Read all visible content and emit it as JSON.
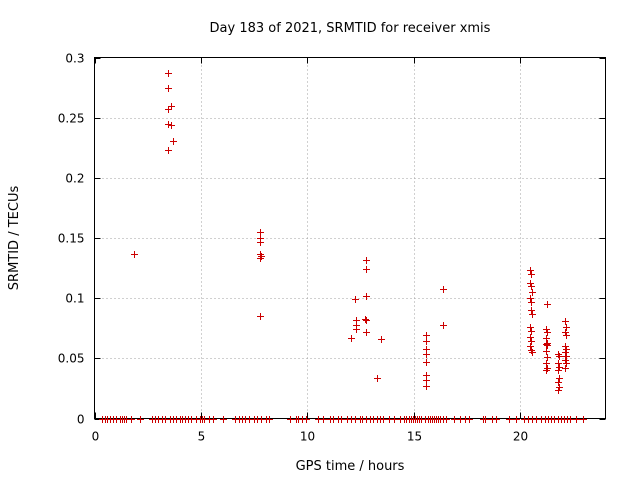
{
  "chart_data": {
    "type": "scatter",
    "title": "Day 183 of 2021, SRMTID for receiver xmis",
    "xlabel": "GPS time / hours",
    "ylabel": "SRMTID / TECUs",
    "xlim": [
      0,
      24
    ],
    "ylim": [
      0,
      0.3
    ],
    "xticks": [
      0,
      5,
      10,
      15,
      20
    ],
    "xtick_labels": [
      "0",
      "5",
      "10",
      "15",
      "20"
    ],
    "yticks": [
      0,
      0.05,
      0.1,
      0.15,
      0.2,
      0.25,
      0.3
    ],
    "ytick_labels": [
      "0",
      "0.05",
      "0.1",
      "0.15",
      "0.2",
      "0.25",
      "0.3"
    ],
    "grid": true,
    "marker": "+",
    "color": "#cc0000",
    "series": [
      {
        "name": "SRMTID",
        "points": [
          [
            1.85,
            0.137
          ],
          [
            3.45,
            0.287
          ],
          [
            3.45,
            0.275
          ],
          [
            3.45,
            0.257
          ],
          [
            3.45,
            0.245
          ],
          [
            3.45,
            0.223
          ],
          [
            3.6,
            0.26
          ],
          [
            3.6,
            0.244
          ],
          [
            3.7,
            0.231
          ],
          [
            7.75,
            0.155
          ],
          [
            7.75,
            0.15
          ],
          [
            7.75,
            0.147
          ],
          [
            7.75,
            0.137
          ],
          [
            7.75,
            0.133
          ],
          [
            7.8,
            0.135
          ],
          [
            7.75,
            0.085
          ],
          [
            12.05,
            0.067
          ],
          [
            12.25,
            0.099
          ],
          [
            12.3,
            0.082
          ],
          [
            12.3,
            0.078
          ],
          [
            12.3,
            0.074
          ],
          [
            12.75,
            0.132
          ],
          [
            12.75,
            0.124
          ],
          [
            12.75,
            0.102
          ],
          [
            12.7,
            0.083
          ],
          [
            12.75,
            0.082
          ],
          [
            12.75,
            0.072
          ],
          [
            13.25,
            0.034
          ],
          [
            13.45,
            0.066
          ],
          [
            15.55,
            0.069
          ],
          [
            15.55,
            0.064
          ],
          [
            15.55,
            0.058
          ],
          [
            15.55,
            0.054
          ],
          [
            15.55,
            0.047
          ],
          [
            15.55,
            0.036
          ],
          [
            15.55,
            0.032
          ],
          [
            15.55,
            0.027
          ],
          [
            16.35,
            0.108
          ],
          [
            16.35,
            0.078
          ],
          [
            20.45,
            0.123
          ],
          [
            20.5,
            0.12
          ],
          [
            20.45,
            0.113
          ],
          [
            20.5,
            0.11
          ],
          [
            20.55,
            0.105
          ],
          [
            20.45,
            0.1
          ],
          [
            20.5,
            0.097
          ],
          [
            20.5,
            0.09
          ],
          [
            20.55,
            0.087
          ],
          [
            20.45,
            0.076
          ],
          [
            20.5,
            0.073
          ],
          [
            20.45,
            0.068
          ],
          [
            20.5,
            0.064
          ],
          [
            20.45,
            0.06
          ],
          [
            20.5,
            0.057
          ],
          [
            20.55,
            0.055
          ],
          [
            21.25,
            0.095
          ],
          [
            21.2,
            0.074
          ],
          [
            21.25,
            0.072
          ],
          [
            21.2,
            0.067
          ],
          [
            21.25,
            0.063
          ],
          [
            21.2,
            0.062
          ],
          [
            21.25,
            0.061
          ],
          [
            21.2,
            0.056
          ],
          [
            21.25,
            0.051
          ],
          [
            21.2,
            0.046
          ],
          [
            21.25,
            0.042
          ],
          [
            21.2,
            0.04
          ],
          [
            21.75,
            0.054
          ],
          [
            21.8,
            0.052
          ],
          [
            21.75,
            0.046
          ],
          [
            21.8,
            0.043
          ],
          [
            21.75,
            0.04
          ],
          [
            21.8,
            0.034
          ],
          [
            21.75,
            0.03
          ],
          [
            21.8,
            0.026
          ],
          [
            21.75,
            0.024
          ],
          [
            22.1,
            0.081
          ],
          [
            22.15,
            0.076
          ],
          [
            22.1,
            0.072
          ],
          [
            22.15,
            0.069
          ],
          [
            22.1,
            0.06
          ],
          [
            22.15,
            0.058
          ],
          [
            22.1,
            0.055
          ],
          [
            22.15,
            0.052
          ],
          [
            22.1,
            0.049
          ],
          [
            22.15,
            0.046
          ],
          [
            22.1,
            0.042
          ],
          [
            0.35,
            0
          ],
          [
            0.5,
            0
          ],
          [
            0.6,
            0
          ],
          [
            0.75,
            0
          ],
          [
            0.85,
            0
          ],
          [
            1.0,
            0
          ],
          [
            1.2,
            0
          ],
          [
            1.3,
            0
          ],
          [
            1.4,
            0
          ],
          [
            1.5,
            0
          ],
          [
            1.7,
            0
          ],
          [
            2.15,
            0
          ],
          [
            2.7,
            0
          ],
          [
            2.85,
            0
          ],
          [
            3.0,
            0
          ],
          [
            3.15,
            0
          ],
          [
            3.3,
            0
          ],
          [
            3.55,
            0
          ],
          [
            3.7,
            0
          ],
          [
            3.85,
            0
          ],
          [
            4.0,
            0
          ],
          [
            4.1,
            0
          ],
          [
            4.25,
            0
          ],
          [
            4.4,
            0
          ],
          [
            4.55,
            0
          ],
          [
            4.75,
            0
          ],
          [
            4.95,
            0
          ],
          [
            5.05,
            0
          ],
          [
            5.15,
            0
          ],
          [
            5.4,
            0
          ],
          [
            5.55,
            0
          ],
          [
            6.05,
            0
          ],
          [
            6.6,
            0
          ],
          [
            6.8,
            0
          ],
          [
            6.95,
            0
          ],
          [
            7.05,
            0
          ],
          [
            7.25,
            0
          ],
          [
            7.5,
            0
          ],
          [
            7.65,
            0
          ],
          [
            7.8,
            0
          ],
          [
            8.05,
            0
          ],
          [
            8.2,
            0
          ],
          [
            9.2,
            0
          ],
          [
            9.45,
            0
          ],
          [
            9.55,
            0
          ],
          [
            9.75,
            0
          ],
          [
            9.95,
            0
          ],
          [
            10.5,
            0
          ],
          [
            10.75,
            0
          ],
          [
            11.05,
            0
          ],
          [
            11.2,
            0
          ],
          [
            11.45,
            0
          ],
          [
            11.6,
            0
          ],
          [
            11.85,
            0
          ],
          [
            12.05,
            0
          ],
          [
            12.25,
            0
          ],
          [
            12.45,
            0
          ],
          [
            12.55,
            0
          ],
          [
            12.75,
            0
          ],
          [
            12.95,
            0
          ],
          [
            13.1,
            0
          ],
          [
            13.25,
            0
          ],
          [
            13.4,
            0
          ],
          [
            13.55,
            0
          ],
          [
            13.85,
            0
          ],
          [
            14.05,
            0
          ],
          [
            14.35,
            0
          ],
          [
            14.55,
            0
          ],
          [
            14.65,
            0
          ],
          [
            14.75,
            0
          ],
          [
            14.85,
            0
          ],
          [
            14.95,
            0
          ],
          [
            15.05,
            0
          ],
          [
            15.15,
            0
          ],
          [
            15.25,
            0
          ],
          [
            15.35,
            0
          ],
          [
            15.5,
            0
          ],
          [
            15.65,
            0
          ],
          [
            15.75,
            0
          ],
          [
            15.85,
            0
          ],
          [
            15.95,
            0
          ],
          [
            16.05,
            0
          ],
          [
            16.15,
            0
          ],
          [
            16.25,
            0
          ],
          [
            16.35,
            0
          ],
          [
            16.5,
            0
          ],
          [
            16.9,
            0
          ],
          [
            17.15,
            0
          ],
          [
            17.4,
            0
          ],
          [
            17.6,
            0
          ],
          [
            18.25,
            0
          ],
          [
            18.35,
            0
          ],
          [
            18.65,
            0
          ],
          [
            18.85,
            0
          ],
          [
            19.45,
            0
          ],
          [
            19.8,
            0
          ],
          [
            20.15,
            0
          ],
          [
            20.35,
            0
          ],
          [
            20.55,
            0
          ],
          [
            20.75,
            0
          ],
          [
            20.95,
            0
          ],
          [
            21.15,
            0
          ],
          [
            21.3,
            0
          ],
          [
            21.45,
            0
          ],
          [
            21.6,
            0
          ],
          [
            21.75,
            0
          ],
          [
            21.9,
            0
          ],
          [
            22.05,
            0
          ],
          [
            22.2,
            0
          ],
          [
            22.35,
            0
          ],
          [
            22.6,
            0
          ],
          [
            22.95,
            0
          ]
        ]
      }
    ]
  }
}
